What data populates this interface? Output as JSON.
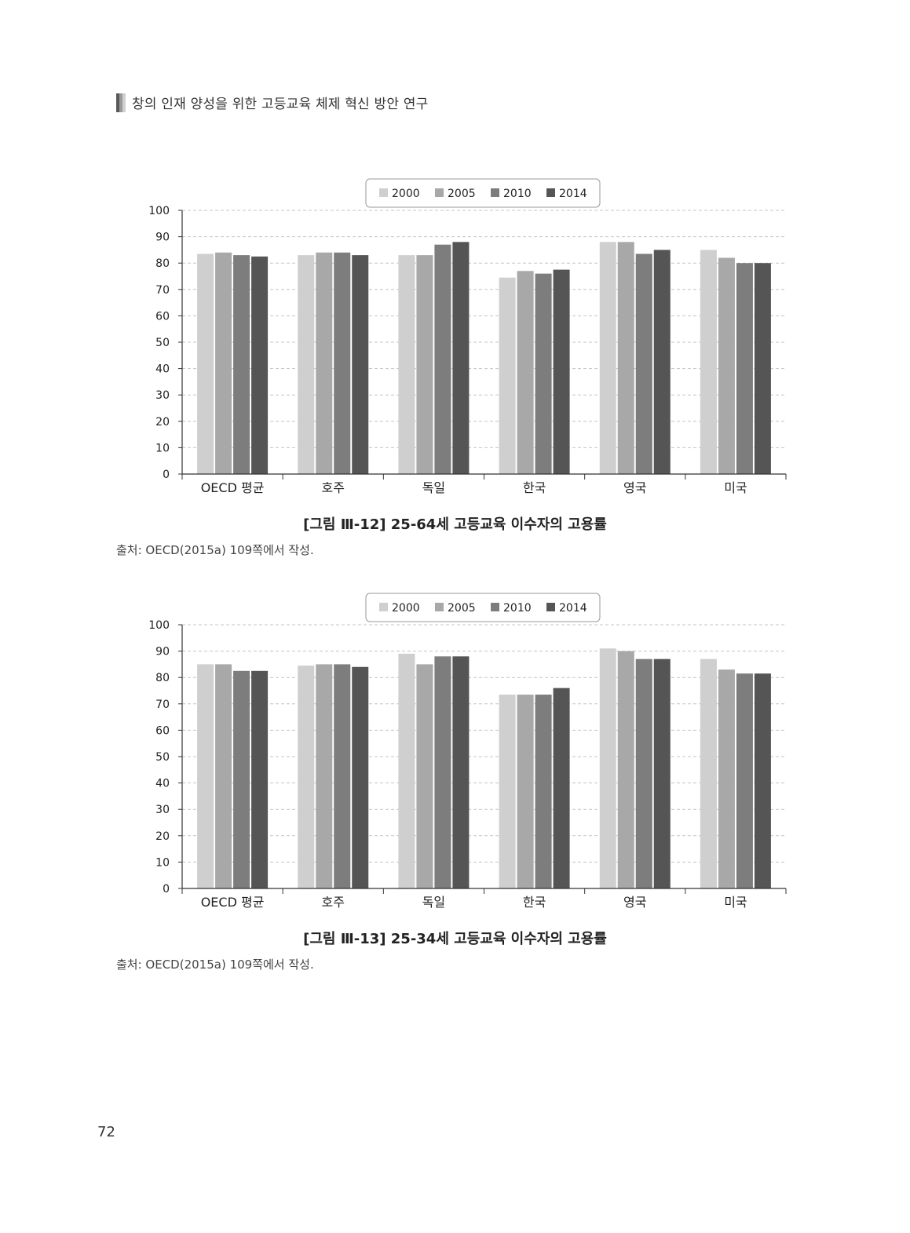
{
  "page": {
    "running_head": "창의 인재 양성을 위한 고등교육 체제 혁신 방안 연구",
    "page_number": "72"
  },
  "figures": [
    {
      "caption": "[그림 Ⅲ-12] 25-64세 고등교육 이수자의 고용률",
      "source": "출처: OECD(2015a) 109쪽에서 작성."
    },
    {
      "caption": "[그림 Ⅲ-13] 25-34세 고등교육 이수자의 고용률",
      "source": "출처: OECD(2015a) 109쪽에서 작성."
    }
  ],
  "chart_data": [
    {
      "type": "bar",
      "title": "",
      "xlabel": "",
      "ylabel": "",
      "ylim": [
        0,
        100
      ],
      "yticks": [
        "0",
        "10",
        "20",
        "30",
        "40",
        "50",
        "60",
        "70",
        "80",
        "90",
        "100"
      ],
      "grid": true,
      "legend_position": "top-center",
      "categories": [
        "OECD 평균",
        "호주",
        "독일",
        "한국",
        "영국",
        "미국"
      ],
      "series": [
        {
          "name": "2000",
          "color": "#cfcfcf",
          "values": [
            83.5,
            83,
            83,
            74.5,
            88,
            85
          ]
        },
        {
          "name": "2005",
          "color": "#a8a8a8",
          "values": [
            84,
            84,
            83,
            77,
            88,
            82
          ]
        },
        {
          "name": "2010",
          "color": "#7d7d7d",
          "values": [
            83,
            84,
            87,
            76,
            83.5,
            80
          ]
        },
        {
          "name": "2014",
          "color": "#555555",
          "values": [
            82.5,
            83,
            88,
            77.5,
            85,
            80
          ]
        }
      ]
    },
    {
      "type": "bar",
      "title": "",
      "xlabel": "",
      "ylabel": "",
      "ylim": [
        0,
        100
      ],
      "yticks": [
        "0",
        "10",
        "20",
        "30",
        "40",
        "50",
        "60",
        "70",
        "80",
        "90",
        "100"
      ],
      "grid": true,
      "legend_position": "top-center",
      "categories": [
        "OECD 평균",
        "호주",
        "독일",
        "한국",
        "영국",
        "미국"
      ],
      "series": [
        {
          "name": "2000",
          "color": "#cfcfcf",
          "values": [
            85,
            84.5,
            89,
            73.5,
            91,
            87
          ]
        },
        {
          "name": "2005",
          "color": "#a8a8a8",
          "values": [
            85,
            85,
            85,
            73.5,
            90,
            83
          ]
        },
        {
          "name": "2010",
          "color": "#7d7d7d",
          "values": [
            82.5,
            85,
            88,
            73.5,
            87,
            81.5
          ]
        },
        {
          "name": "2014",
          "color": "#555555",
          "values": [
            82.5,
            84,
            88,
            76,
            87,
            81.5
          ]
        }
      ]
    }
  ]
}
